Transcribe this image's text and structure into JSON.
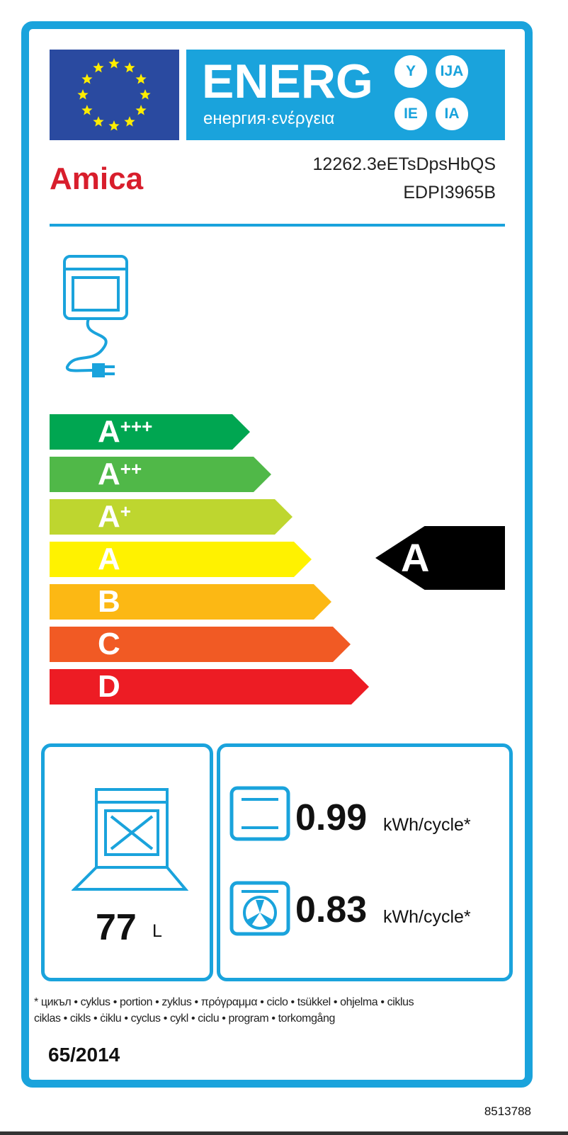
{
  "header": {
    "energy_title": "ENERG",
    "energy_subtitle": "енергия·ενέργεια",
    "suffixes": [
      "Y",
      "IJA",
      "IE",
      "IA"
    ],
    "brand": "Amica",
    "supplier_code": "12262.3eETsDpsHbQS",
    "model": "EDPI3965B"
  },
  "scale": [
    {
      "label": "A",
      "plus": "+++",
      "color": "#00a651"
    },
    {
      "label": "A",
      "plus": "++",
      "color": "#50b848"
    },
    {
      "label": "A",
      "plus": "+",
      "color": "#bed62f"
    },
    {
      "label": "A",
      "plus": "",
      "color": "#fff200"
    },
    {
      "label": "B",
      "plus": "",
      "color": "#fcb814"
    },
    {
      "label": "C",
      "plus": "",
      "color": "#f15a24"
    },
    {
      "label": "D",
      "plus": "",
      "color": "#ed1c24"
    }
  ],
  "rating": "A",
  "volume": {
    "value": "77",
    "unit": "L"
  },
  "consumption": [
    {
      "icon": "conventional-oven-icon",
      "value": "0.99",
      "unit": "kWh/cycle*"
    },
    {
      "icon": "fan-oven-icon",
      "value": "0.83",
      "unit": "kWh/cycle*"
    }
  ],
  "footnote": [
    "* цикъл • cyklus • portion • zyklus • πρόγραμμα • ciclo • tsükkel • ohjelma • ciklus",
    "ciklas • cikls • ċiklu • cyclus • cykl • ciclu • program • torkomgång"
  ],
  "regulation": "65/2014",
  "label_number": "8513788",
  "colors": {
    "accent": "#1aa3dc",
    "brand": "#d81e2c"
  }
}
